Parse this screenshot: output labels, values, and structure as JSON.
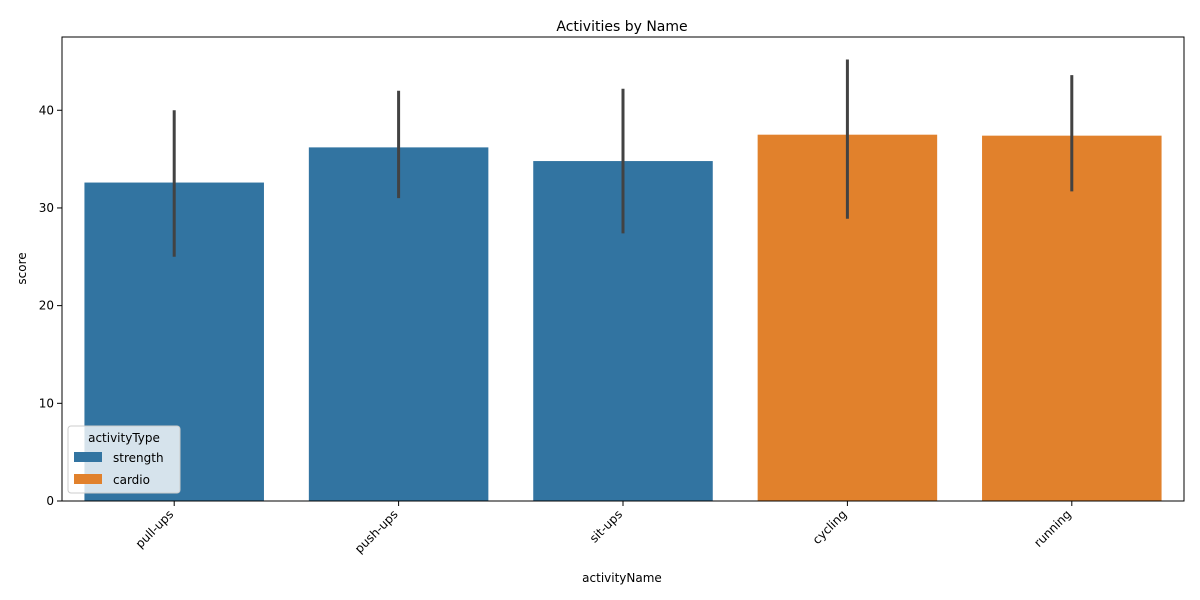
{
  "chart_data": {
    "type": "bar",
    "title": "Activities by Name",
    "xlabel": "activityName",
    "ylabel": "score",
    "categories": [
      "pull-ups",
      "push-ups",
      "sit-ups",
      "cycling",
      "running"
    ],
    "values": [
      32.6,
      36.2,
      34.8,
      37.5,
      37.4
    ],
    "error_low": [
      25.0,
      31.0,
      27.4,
      28.9,
      31.7
    ],
    "error_high": [
      40.0,
      42.0,
      42.2,
      45.2,
      43.6
    ],
    "hue": [
      "strength",
      "strength",
      "strength",
      "cardio",
      "cardio"
    ],
    "ylim": [
      0,
      47.5
    ],
    "yticks": [
      0,
      10,
      20,
      30,
      40
    ],
    "xtick_rotation": 45,
    "grid": false,
    "legend": {
      "title": "activityType",
      "placement": "lower-left",
      "entries": [
        {
          "name": "strength",
          "color": "#3274a1"
        },
        {
          "name": "cardio",
          "color": "#e1812c"
        }
      ]
    },
    "colors": {
      "strength": "#3274a1",
      "cardio": "#e1812c",
      "errorbar": "#424242"
    }
  }
}
